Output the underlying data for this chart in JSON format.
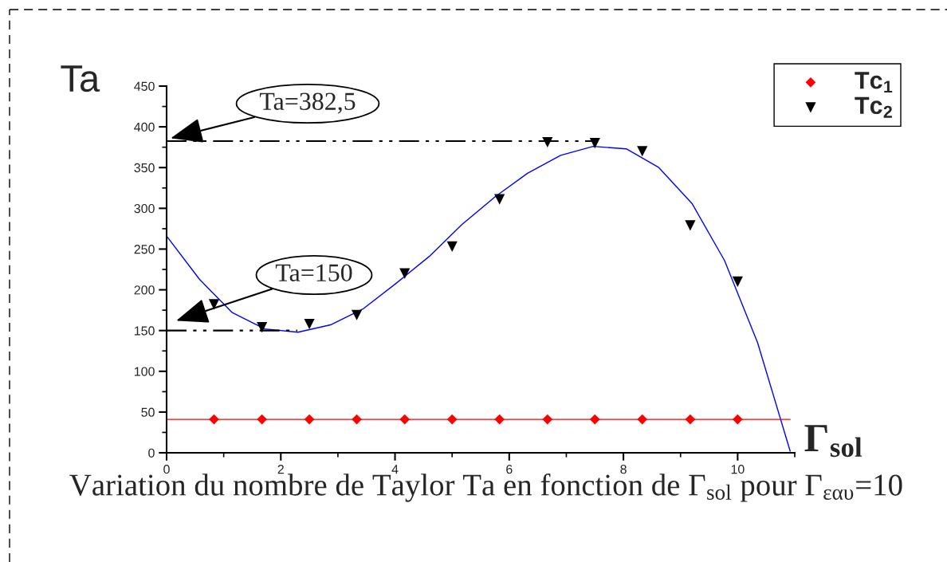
{
  "chart_data": {
    "type": "scatter",
    "ylabel": "Ta",
    "xlabel": "Γ$_{sol}$",
    "annotations": [
      {
        "text": "Ta=382,5",
        "x": 0.07,
        "y": 386
      },
      "Ta=150",
      "Variation du nombre de Taylor Ta en fonction de Γ$_{sol}$ pour Γ$_{εαυ}$=10"
    ],
    "x": [
      0.83,
      1.67,
      2.5,
      3.33,
      4.17,
      5,
      5.83,
      6.67,
      7.5,
      8.33,
      9.17,
      10
    ],
    "series": [
      {
        "type": "line",
        "color": "#0000ff",
        "x": [
          0,
          0.575,
          1.15,
          1.72,
          2.3,
          2.87,
          3.45,
          4.02,
          4.6,
          5.17,
          5.75,
          6.32,
          6.9,
          7.47,
          8.05,
          8.62,
          9.2,
          9.77,
          10.35,
          10.92
        ],
        "values": [
          266,
          213,
          172,
          152,
          148,
          157,
          177,
          208,
          241,
          280,
          314,
          343,
          365,
          376,
          373,
          350,
          306,
          236,
          135,
          2
        ]
      },
      {
        "type": "line",
        "color": "#ff0000",
        "x": [
          0,
          10.92
        ],
        "values": [
          41,
          41
        ]
      },
      {
        "type": "line",
        "color": "#000000",
        "line_style": "dashed",
        "x": [
          0,
          7.5
        ],
        "values": [
          382.5,
          382.5
        ]
      },
      {
        "type": "line",
        "color": "#000000",
        "line_style": "dashed",
        "x": [
          0,
          2.29
        ],
        "values": [
          150,
          150
        ]
      },
      {
        "name": "Tc$_{1}$",
        "color": "#ff0000",
        "marker": "diamond",
        "values": [
          41,
          41,
          41,
          41,
          41,
          41,
          41,
          41,
          41,
          41,
          41,
          41
        ]
      },
      {
        "name": "Tc$_{2}$",
        "color": "#000000",
        "marker": "triangle",
        "values": [
          182,
          154,
          158,
          169,
          220,
          253,
          311,
          381,
          380,
          370,
          279,
          210
        ]
      }
    ],
    "xlim": [
      0,
      11
    ],
    "ylim": [
      0,
      450
    ],
    "xticks": [
      0,
      2,
      4,
      6,
      8,
      10
    ],
    "yticks": [
      0,
      50,
      100,
      150,
      200,
      250,
      300,
      350,
      400,
      450
    ],
    "legend": "top right"
  }
}
